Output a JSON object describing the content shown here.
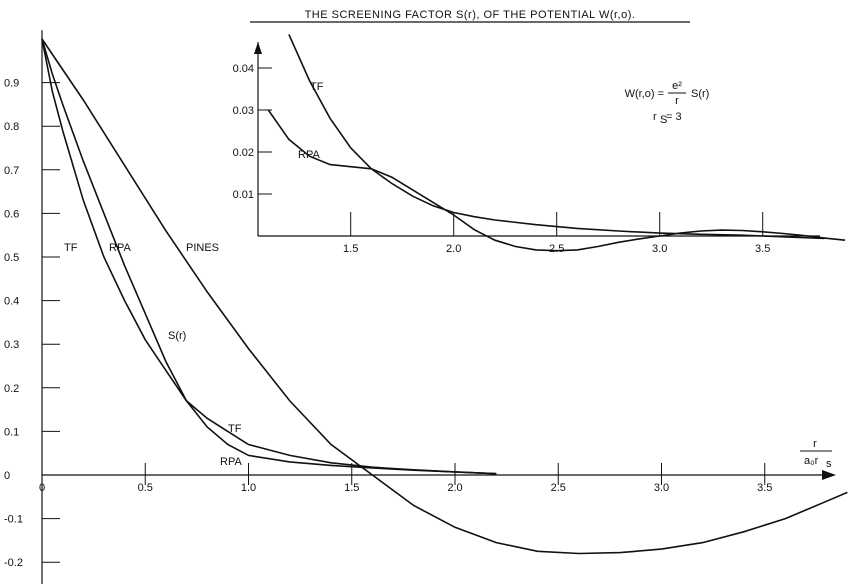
{
  "chart_data": [
    {
      "type": "line",
      "title": "THE SCREENING FACTOR S(r), OF THE POTENTIAL W(r,o).",
      "xlabel_num": "r",
      "xlabel_den": "a₀r",
      "xlabel_den_sub": "s",
      "ylabel": "S(r)",
      "xlim": [
        0,
        3.9
      ],
      "ylim": [
        -0.25,
        1.0
      ],
      "x_ticks": [
        "0",
        "0.5",
        "1.0",
        "1.5",
        "2.0",
        "2.5",
        "3.0",
        "3.5"
      ],
      "y_ticks": [
        "0.9",
        "0.8",
        "0.7",
        "0.6",
        "0.5",
        "0.4",
        "0.3",
        "0.2",
        "0.1",
        "0",
        "-0.1",
        "-0.2"
      ],
      "y_tick_values": [
        0.9,
        0.8,
        0.7,
        0.6,
        0.5,
        0.4,
        0.3,
        0.2,
        0.1,
        0,
        -0.1,
        -0.2
      ],
      "series": [
        {
          "name": "TF",
          "x": [
            0,
            0.05,
            0.1,
            0.2,
            0.3,
            0.4,
            0.5,
            0.6,
            0.7,
            0.8,
            0.9,
            1.0,
            1.2,
            1.4,
            1.6,
            1.8,
            2.0,
            2.2
          ],
          "y": [
            1.0,
            0.88,
            0.79,
            0.63,
            0.5,
            0.4,
            0.31,
            0.24,
            0.17,
            0.13,
            0.1,
            0.07,
            0.045,
            0.028,
            0.018,
            0.012,
            0.007,
            0.003
          ]
        },
        {
          "name": "RPA",
          "x": [
            0,
            0.05,
            0.1,
            0.2,
            0.3,
            0.4,
            0.5,
            0.6,
            0.7,
            0.8,
            0.9,
            1.0,
            1.2,
            1.4,
            1.6,
            1.8,
            2.0,
            2.2
          ],
          "y": [
            1.0,
            0.92,
            0.85,
            0.72,
            0.6,
            0.48,
            0.37,
            0.26,
            0.17,
            0.11,
            0.07,
            0.045,
            0.03,
            0.022,
            0.016,
            0.011,
            0.007,
            0.003
          ]
        },
        {
          "name": "PINES",
          "x": [
            0,
            0.2,
            0.4,
            0.6,
            0.8,
            1.0,
            1.2,
            1.4,
            1.6,
            1.8,
            2.0,
            2.2,
            2.4,
            2.6,
            2.8,
            3.0,
            3.2,
            3.4,
            3.6,
            3.8,
            3.9
          ],
          "y": [
            1.0,
            0.86,
            0.71,
            0.56,
            0.42,
            0.29,
            0.17,
            0.07,
            0.0,
            -0.07,
            -0.12,
            -0.155,
            -0.175,
            -0.18,
            -0.178,
            -0.17,
            -0.155,
            -0.13,
            -0.1,
            -0.06,
            -0.04
          ]
        }
      ],
      "labels": {
        "tf_left": "TF",
        "rpa_left": "RPA",
        "pines": "PINES",
        "sr": "S(r)",
        "tf_tail": "TF",
        "rpa_tail": "RPA"
      }
    },
    {
      "type": "line",
      "title": "",
      "xlim": [
        1.05,
        3.9
      ],
      "ylim": [
        0.0,
        0.045
      ],
      "x_ticks": [
        "1.5",
        "2.0",
        "2.5",
        "3.0",
        "3.5"
      ],
      "x_tick_values": [
        1.5,
        2.0,
        2.5,
        3.0,
        3.5
      ],
      "y_ticks": [
        "0.04",
        "0.03",
        "0.02",
        "0.01"
      ],
      "y_tick_values": [
        0.04,
        0.03,
        0.02,
        0.01
      ],
      "baseline": 0.0,
      "series": [
        {
          "name": "TF",
          "x": [
            1.2,
            1.3,
            1.4,
            1.5,
            1.6,
            1.7,
            1.8,
            1.9,
            2.0,
            2.1,
            2.2,
            2.4,
            2.6,
            2.8,
            3.0,
            3.2,
            3.4,
            3.6,
            3.8
          ],
          "y": [
            0.048,
            0.037,
            0.028,
            0.021,
            0.016,
            0.0125,
            0.0095,
            0.0072,
            0.0056,
            0.0046,
            0.0038,
            0.0027,
            0.0018,
            0.0012,
            0.0007,
            0.0004,
            0.0002,
            -0.0002,
            -0.0006
          ]
        },
        {
          "name": "RPA",
          "x": [
            1.1,
            1.2,
            1.3,
            1.4,
            1.5,
            1.6,
            1.7,
            1.8,
            1.9,
            2.0,
            2.1,
            2.2,
            2.3,
            2.4,
            2.5,
            2.6,
            2.7,
            2.8,
            2.9,
            3.0,
            3.1,
            3.2,
            3.3,
            3.4,
            3.5,
            3.6,
            3.7,
            3.8,
            3.9
          ],
          "y": [
            0.03,
            0.023,
            0.019,
            0.017,
            0.0165,
            0.016,
            0.014,
            0.011,
            0.008,
            0.005,
            0.0015,
            -0.001,
            -0.0025,
            -0.0033,
            -0.0035,
            -0.0033,
            -0.0025,
            -0.0015,
            -0.0007,
            0.0,
            0.0007,
            0.0012,
            0.0014,
            0.0013,
            0.001,
            0.0006,
            0.0001,
            -0.0005,
            -0.001
          ]
        }
      ],
      "labels": {
        "tf": "TF",
        "rpa": "RPA"
      },
      "formula": {
        "lhs": "W(r,o) =",
        "num": "e²",
        "den": "r",
        "rhs": "S(r)",
        "rs_line": "r",
        "rs_sub": "S",
        "rs_value": " = 3"
      }
    }
  ]
}
